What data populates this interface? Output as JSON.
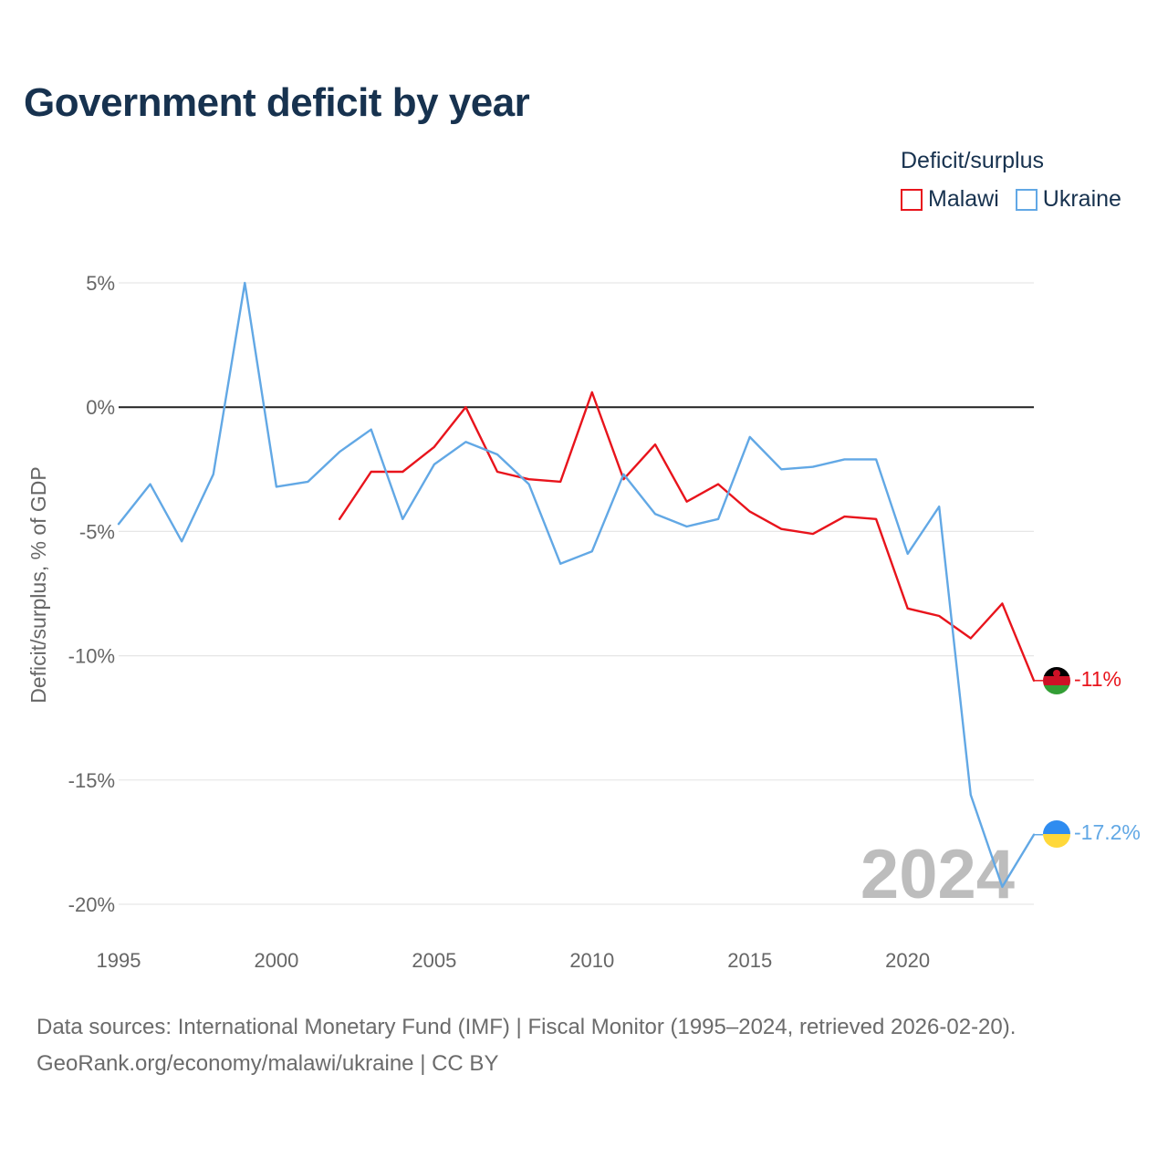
{
  "title": "Government deficit by year",
  "legend": {
    "title": "Deficit/surplus",
    "items": [
      {
        "label": "Malawi",
        "color": "#e8141c"
      },
      {
        "label": "Ukraine",
        "color": "#62a8e5"
      }
    ]
  },
  "source": {
    "line1": "Data sources: International Monetary Fund (IMF) | Fiscal Monitor (1995–2024, retrieved 2026-02-20).",
    "line2": "GeoRank.org/economy/malawi/ukraine | CC BY"
  },
  "chart_data": {
    "type": "line",
    "title": "Government deficit by year",
    "ylabel": "Deficit/surplus, % of GDP",
    "xlabel": "",
    "xlim": [
      1995,
      2024
    ],
    "ylim": [
      -20,
      5
    ],
    "x_ticks": [
      1995,
      2000,
      2005,
      2010,
      2015,
      2020
    ],
    "y_ticks": [
      {
        "value": 5,
        "label": "5%"
      },
      {
        "value": 0,
        "label": "0%"
      },
      {
        "value": -5,
        "label": "-5%"
      },
      {
        "value": -10,
        "label": "-10%"
      },
      {
        "value": -15,
        "label": "-15%"
      },
      {
        "value": -20,
        "label": "-20%"
      }
    ],
    "year_watermark": "2024",
    "series": [
      {
        "name": "Malawi",
        "color": "#e8141c",
        "end_label": "-11%",
        "x": [
          2002,
          2003,
          2004,
          2005,
          2006,
          2007,
          2008,
          2009,
          2010,
          2011,
          2012,
          2013,
          2014,
          2015,
          2016,
          2017,
          2018,
          2019,
          2020,
          2021,
          2022,
          2023,
          2024
        ],
        "values": [
          -4.5,
          -2.6,
          -2.6,
          -1.6,
          0.0,
          -2.6,
          -2.9,
          -3.0,
          0.6,
          -2.9,
          -1.5,
          -3.8,
          -3.1,
          -4.2,
          -4.9,
          -5.1,
          -4.4,
          -4.5,
          -8.1,
          -8.4,
          -9.3,
          -7.9,
          -11.0
        ]
      },
      {
        "name": "Ukraine",
        "color": "#62a8e5",
        "end_label": "-17.2%",
        "x": [
          1995,
          1996,
          1997,
          1998,
          1999,
          2000,
          2001,
          2002,
          2003,
          2004,
          2005,
          2006,
          2007,
          2008,
          2009,
          2010,
          2011,
          2012,
          2013,
          2014,
          2015,
          2016,
          2017,
          2018,
          2019,
          2020,
          2021,
          2022,
          2023,
          2024
        ],
        "values": [
          -4.7,
          -3.1,
          -5.4,
          -2.7,
          5.0,
          -3.2,
          -3.0,
          -1.8,
          -0.9,
          -4.5,
          -2.3,
          -1.4,
          -1.9,
          -3.1,
          -6.3,
          -5.8,
          -2.7,
          -4.3,
          -4.8,
          -4.5,
          -1.2,
          -2.5,
          -2.4,
          -2.1,
          -2.1,
          -5.9,
          -4.0,
          -15.6,
          -19.3,
          -17.2
        ]
      }
    ]
  }
}
